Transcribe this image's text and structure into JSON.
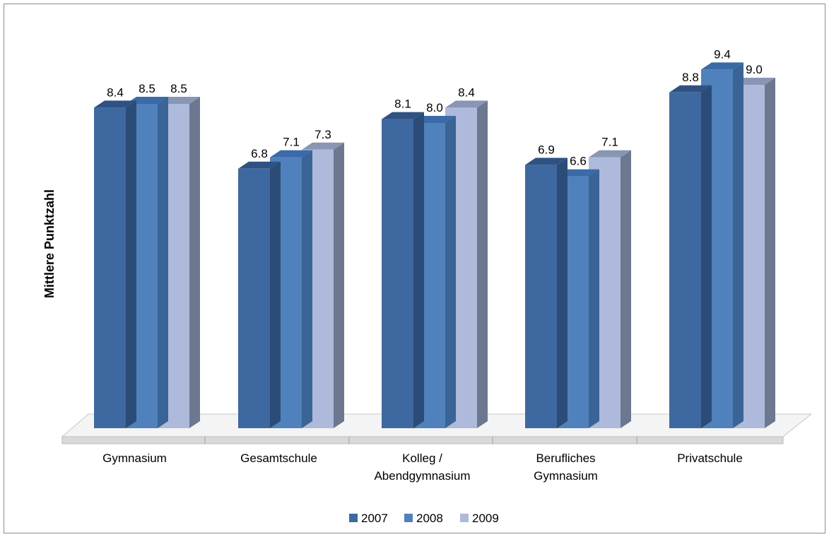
{
  "chart_data": {
    "type": "bar",
    "title": "",
    "xlabel": "",
    "ylabel": "Mittlere Punktzahl",
    "categories": [
      [
        "Gymnasium"
      ],
      [
        "Gesamtschule"
      ],
      [
        "Kolleg /",
        "Abendgymnasium"
      ],
      [
        "Berufliches",
        "Gymnasium"
      ],
      [
        "Privatschule"
      ]
    ],
    "series": [
      {
        "name": "2007",
        "values": [
          8.4,
          6.8,
          8.1,
          6.9,
          8.8
        ],
        "labels": [
          "8.4",
          "6.8",
          "8.1",
          "6.9",
          "8.8"
        ],
        "color": "#3e68a0",
        "side_color": "#2c4c78",
        "top_color": "#2f5283"
      },
      {
        "name": "2008",
        "values": [
          8.5,
          7.1,
          8.0,
          6.6,
          9.4
        ],
        "labels": [
          "8.5",
          "7.1",
          "8.0",
          "6.6",
          "9.4"
        ],
        "color": "#4f81bd",
        "side_color": "#3a6496",
        "top_color": "#3a6aa8"
      },
      {
        "name": "2009",
        "values": [
          8.5,
          7.3,
          8.4,
          7.1,
          9.0
        ],
        "labels": [
          "8.5",
          "7.3",
          "8.4",
          "7.1",
          "9.0"
        ],
        "color": "#aebadb",
        "side_color": "#6b7890",
        "top_color": "#8896b4"
      }
    ],
    "ylim": [
      0,
      10.4
    ],
    "grid": false,
    "legend_position": "bottom"
  }
}
